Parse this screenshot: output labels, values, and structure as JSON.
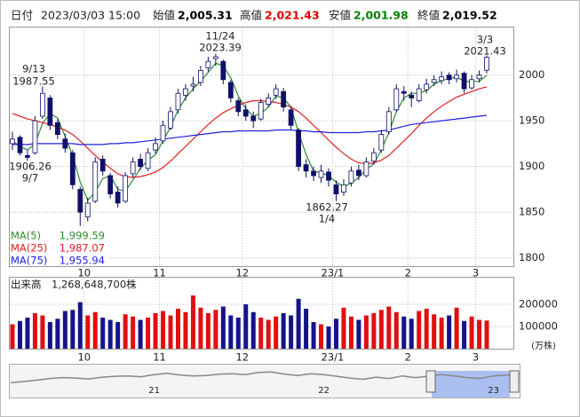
{
  "chart_data": {
    "type": "candlestick",
    "header": {
      "label": "日付",
      "date": "2023/03/03 15:00",
      "items": [
        {
          "name": "始値",
          "value": 2005.31,
          "label": "2,005.31",
          "color": "#000000"
        },
        {
          "name": "高値",
          "value": 2021.43,
          "label": "2,021.43",
          "color": "#e00000"
        },
        {
          "name": "安値",
          "value": 2001.98,
          "label": "2,001.98",
          "color": "#008000"
        },
        {
          "name": "終値",
          "value": 2019.52,
          "label": "2,019.52",
          "color": "#000000"
        }
      ]
    },
    "categories": [
      null,
      null,
      null,
      null,
      null,
      null,
      null,
      null,
      null,
      null,
      "10",
      null,
      null,
      null,
      null,
      null,
      null,
      null,
      null,
      null,
      "11",
      null,
      null,
      null,
      null,
      null,
      null,
      null,
      null,
      null,
      null,
      "12",
      null,
      null,
      null,
      null,
      null,
      null,
      null,
      null,
      null,
      null,
      null,
      "23/1",
      null,
      null,
      null,
      null,
      null,
      null,
      null,
      null,
      null,
      "2",
      null,
      null,
      null,
      null,
      null,
      null,
      null,
      null,
      "3",
      null
    ],
    "open": [
      1925,
      1932,
      1912,
      1915,
      1955,
      1975,
      1948,
      1930,
      1915,
      1875,
      1845,
      1862,
      1908,
      1890,
      1872,
      1862,
      1892,
      1908,
      1898,
      1918,
      1928,
      1942,
      1962,
      1978,
      1988,
      1992,
      2008,
      2018,
      2015,
      1992,
      1972,
      1962,
      1955,
      1952,
      1968,
      1978,
      1982,
      1962,
      1940,
      1902,
      1895,
      1888,
      1894,
      1880,
      1872,
      1882,
      1896,
      1890,
      1906,
      1918,
      1938,
      1962,
      1982,
      1978,
      1972,
      1984,
      1992,
      1994,
      2000,
      1996,
      2002,
      1986,
      1996,
      2005.31
    ],
    "high": [
      1938,
      1934,
      1918,
      1955,
      1987.55,
      1978,
      1952,
      1936,
      1918,
      1878,
      1866,
      1910,
      1912,
      1893,
      1878,
      1894,
      1910,
      1914,
      1920,
      1932,
      1950,
      1965,
      1985,
      1990,
      1998,
      2010,
      2020,
      2023.39,
      2017,
      1995,
      1975,
      1968,
      1960,
      1974,
      1980,
      1990,
      1986,
      1966,
      1942,
      1908,
      1900,
      1902,
      1898,
      1885,
      1886,
      1900,
      1902,
      1910,
      1920,
      1940,
      1965,
      1990,
      1988,
      1982,
      1990,
      1996,
      2000,
      2004,
      2003,
      2006,
      2004,
      2000,
      2005,
      2021.43
    ],
    "low": [
      1918,
      1912,
      1906.26,
      1913,
      1952,
      1940,
      1930,
      1915,
      1875,
      1835,
      1840,
      1860,
      1890,
      1865,
      1855,
      1860,
      1888,
      1896,
      1895,
      1914,
      1925,
      1940,
      1958,
      1972,
      1982,
      1988,
      2004,
      2010,
      1990,
      1970,
      1955,
      1950,
      1942,
      1950,
      1965,
      1974,
      1960,
      1940,
      1895,
      1888,
      1884,
      1882,
      1878,
      1862.27,
      1868,
      1878,
      1885,
      1888,
      1902,
      1915,
      1935,
      1960,
      1972,
      1965,
      1970,
      1980,
      1988,
      1990,
      1990,
      1992,
      1980,
      1984,
      1992,
      2001.98
    ],
    "close": [
      1930,
      1915,
      1910,
      1950,
      1980,
      1945,
      1935,
      1920,
      1880,
      1850,
      1860,
      1905,
      1895,
      1870,
      1860,
      1890,
      1905,
      1900,
      1915,
      1925,
      1945,
      1960,
      1980,
      1985,
      1990,
      2005,
      2015,
      2020,
      1995,
      1975,
      1960,
      1955,
      1950,
      1970,
      1975,
      1985,
      1965,
      1945,
      1900,
      1895,
      1890,
      1895,
      1885,
      1870,
      1880,
      1895,
      1890,
      1905,
      1915,
      1935,
      1960,
      1985,
      1980,
      1975,
      1985,
      1990,
      1995,
      1998,
      1995,
      2000,
      1985,
      1995,
      2000,
      2019.52
    ],
    "up_color": "#ffffff",
    "down_color": "#10106a",
    "outline_color": "#10106a",
    "series": [
      {
        "name": "MA(5)",
        "color": "#2e8b2e",
        "latest": {
          "value": 1999.59,
          "label": "1,999.59"
        },
        "values": [
          1928,
          1922,
          1918,
          1925,
          1947,
          1958,
          1953,
          1933,
          1912,
          1883,
          1863,
          1872,
          1887,
          1890,
          1875,
          1873,
          1885,
          1898,
          1907,
          1913,
          1928,
          1943,
          1962,
          1975,
          1985,
          1993,
          2003,
          2013,
          2010,
          1997,
          1977,
          1963,
          1955,
          1958,
          1965,
          1977,
          1975,
          1965,
          1937,
          1913,
          1895,
          1893,
          1890,
          1883,
          1878,
          1882,
          1888,
          1897,
          1903,
          1918,
          1937,
          1960,
          1975,
          1980,
          1980,
          1983,
          1990,
          1994,
          1996,
          1998,
          1993,
          1993,
          1993,
          1999.59
        ]
      },
      {
        "name": "MA(25)",
        "color": "#e02020",
        "latest": {
          "value": 1987.07,
          "label": "1,987.07"
        },
        "values": [
          1958,
          1955,
          1952,
          1950,
          1948,
          1946,
          1943,
          1940,
          1935,
          1928,
          1920,
          1912,
          1905,
          1898,
          1892,
          1889,
          1888,
          1889,
          1891,
          1894,
          1899,
          1906,
          1914,
          1922,
          1930,
          1938,
          1946,
          1953,
          1959,
          1963,
          1967,
          1970,
          1972,
          1972,
          1971,
          1970,
          1968,
          1965,
          1960,
          1953,
          1945,
          1937,
          1929,
          1921,
          1914,
          1908,
          1904,
          1903,
          1904,
          1907,
          1912,
          1920,
          1928,
          1936,
          1945,
          1953,
          1960,
          1966,
          1971,
          1976,
          1979,
          1982,
          1985,
          1987.07
        ]
      },
      {
        "name": "MA(75)",
        "color": "#2020e0",
        "latest": {
          "value": 1955.94,
          "label": "1,955.94"
        },
        "values": [
          1924,
          1924,
          1924,
          1925,
          1925,
          1925,
          1925,
          1925,
          1925,
          1924,
          1924,
          1924,
          1924,
          1925,
          1925,
          1926,
          1926,
          1927,
          1928,
          1929,
          1930,
          1931,
          1932,
          1933,
          1934,
          1935,
          1936,
          1937,
          1938,
          1938,
          1939,
          1939,
          1939,
          1939,
          1939,
          1940,
          1940,
          1940,
          1939,
          1939,
          1938,
          1938,
          1937,
          1937,
          1937,
          1937,
          1937,
          1938,
          1938,
          1939,
          1940,
          1942,
          1944,
          1946,
          1947,
          1948,
          1949,
          1950,
          1951,
          1952,
          1953,
          1954,
          1955,
          1955.94
        ]
      }
    ],
    "annotations": [
      {
        "date": "9/13",
        "value": 1987.55
      },
      {
        "date": "9/7",
        "value": 1906.26
      },
      {
        "date": "11/24",
        "value": 2023.39
      },
      {
        "date": "1/4",
        "value": 1862.27
      },
      {
        "date": "3/3",
        "value": 2021.43
      }
    ],
    "ylim": [
      1791,
      2053
    ],
    "yticks": [
      1800,
      1850,
      1900,
      1950,
      2000
    ],
    "grid": true,
    "volume": {
      "title": "出来高",
      "total": {
        "value": 1268648700,
        "label": "1,268,648,700株"
      },
      "unit": "(万株)",
      "up_color": "#e01010",
      "down_color": "#14148a",
      "ylim": [
        0,
        320000
      ],
      "yticks": [
        100000,
        200000
      ],
      "values": [
        110000,
        125000,
        140000,
        160000,
        150000,
        120000,
        135000,
        170000,
        175000,
        210000,
        150000,
        165000,
        140000,
        130000,
        120000,
        155000,
        145000,
        130000,
        140000,
        160000,
        170000,
        150000,
        180000,
        165000,
        240000,
        185000,
        160000,
        175000,
        190000,
        150000,
        140000,
        200000,
        165000,
        140000,
        130000,
        145000,
        160000,
        150000,
        225000,
        180000,
        120000,
        110000,
        100000,
        135000,
        185000,
        145000,
        130000,
        150000,
        160000,
        175000,
        190000,
        165000,
        145000,
        135000,
        170000,
        180000,
        155000,
        140000,
        150000,
        185000,
        125000,
        145000,
        130000,
        126865
      ]
    },
    "navigator": {
      "color": "#888888",
      "window_color": "#aabff0",
      "categories": [
        null,
        null,
        null,
        null,
        null,
        null,
        null,
        null,
        null,
        null,
        null,
        "21",
        null,
        null,
        null,
        null,
        null,
        null,
        null,
        null,
        null,
        null,
        null,
        null,
        "22",
        null,
        null,
        null,
        null,
        null,
        null,
        null,
        null,
        null,
        null,
        null,
        null,
        "23",
        null,
        null
      ],
      "ylim": [
        1500,
        2200
      ],
      "values": [
        1800,
        1830,
        1860,
        1900,
        1920,
        1910,
        1890,
        1930,
        1950,
        1960,
        1940,
        1990,
        2020,
        1980,
        1960,
        1970,
        2000,
        2010,
        1990,
        2040,
        2050,
        2000,
        1970,
        2010,
        1990,
        1950,
        1910,
        1880,
        1930,
        1900,
        1960,
        1920,
        1950,
        1990,
        1960,
        1920,
        1900,
        1960,
        1980,
        2010
      ],
      "ylim_note_free": true
    }
  }
}
